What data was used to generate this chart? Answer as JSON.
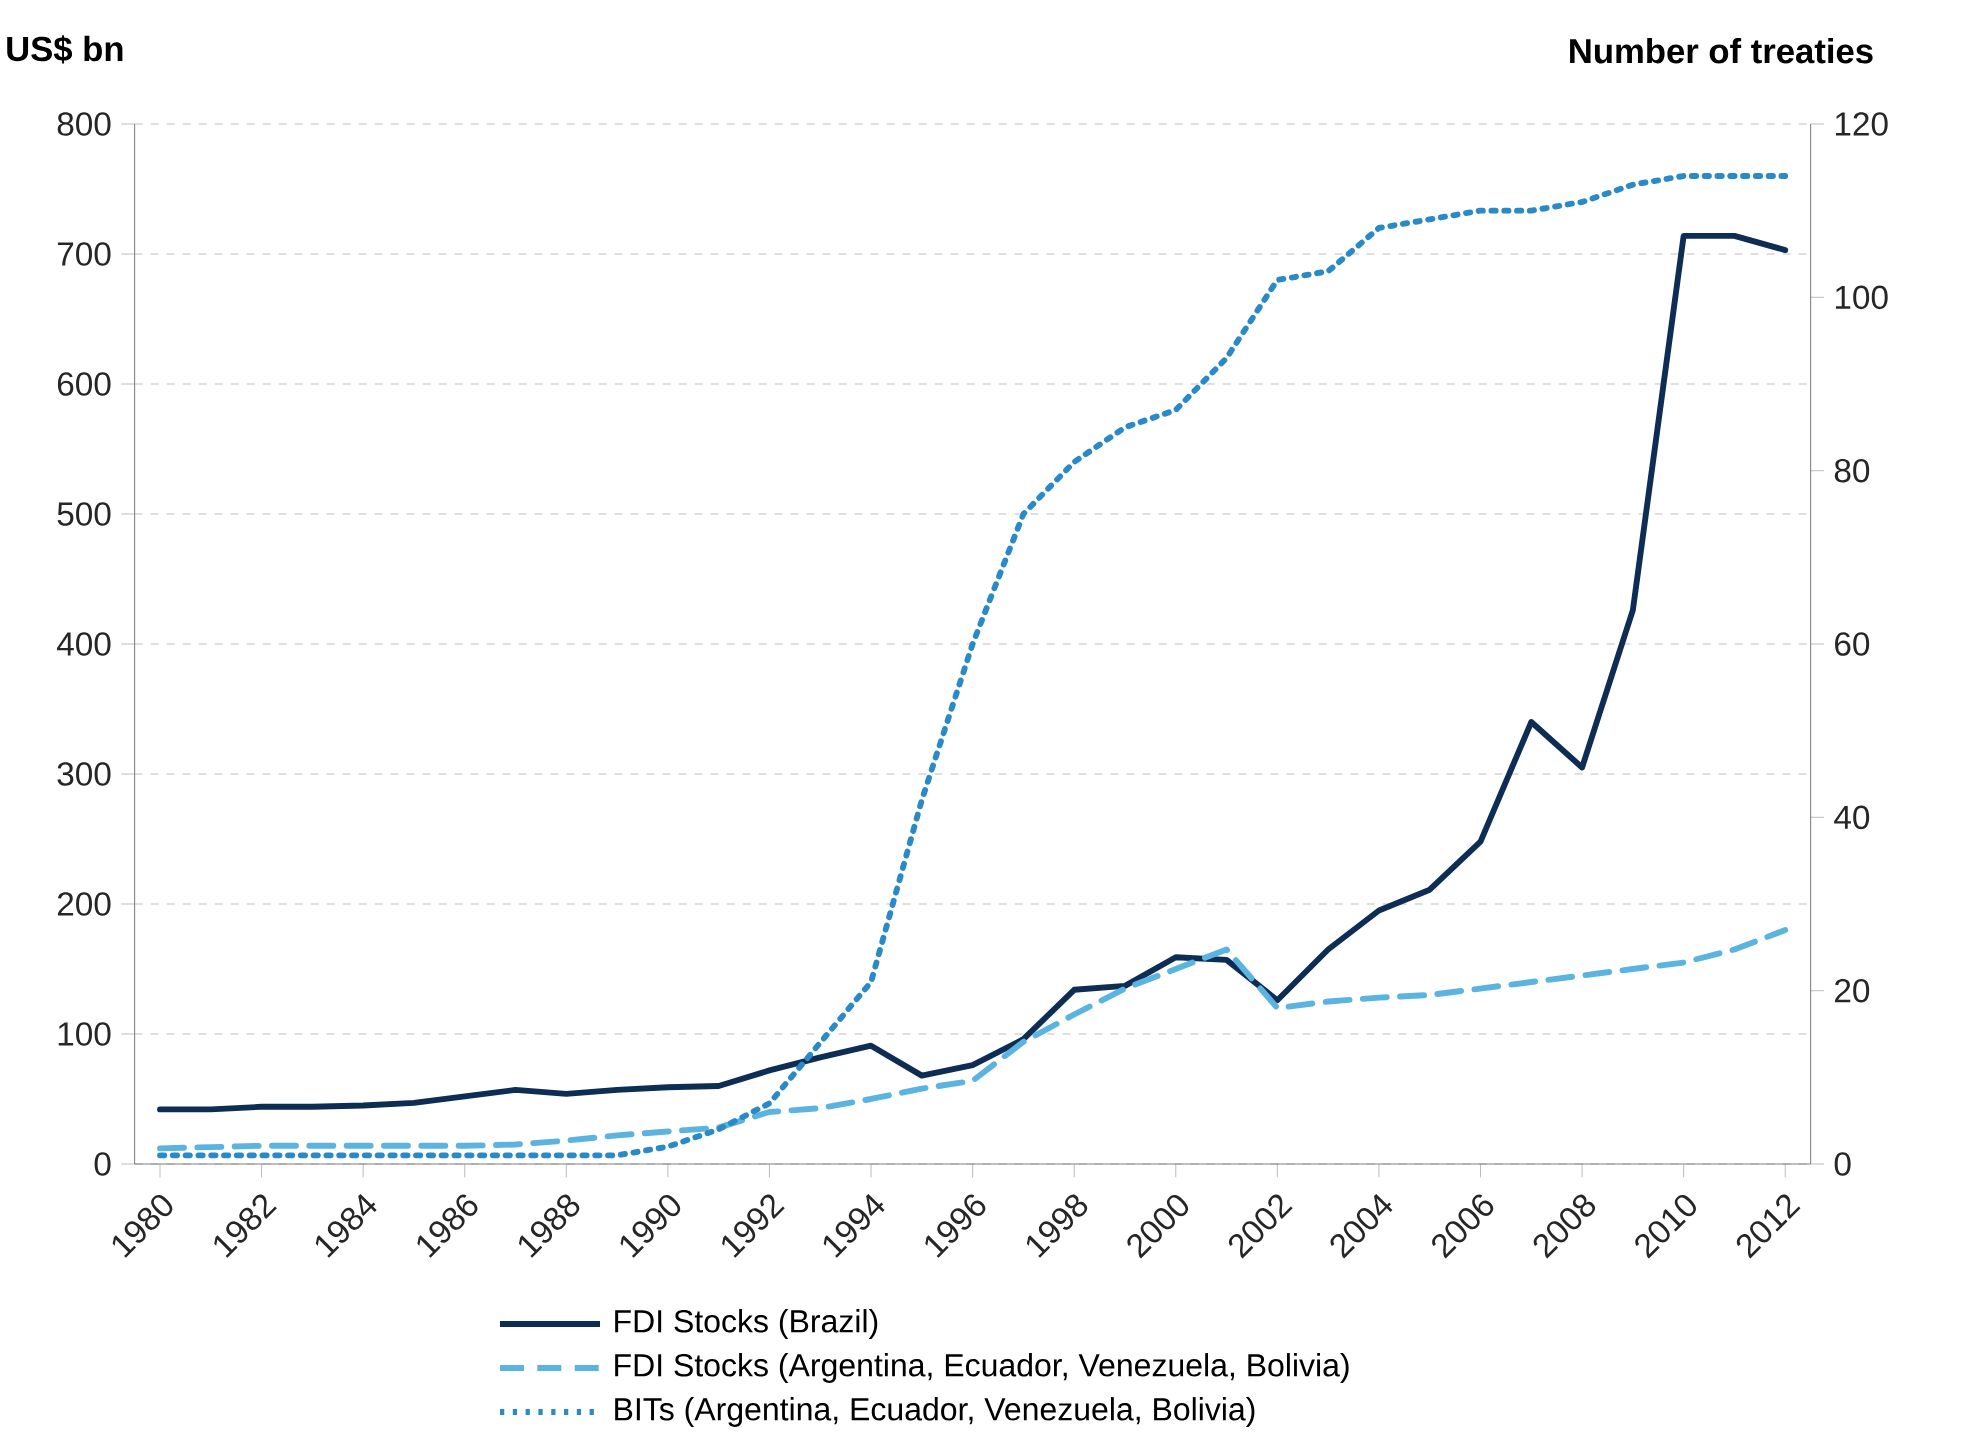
{
  "chart_data": {
    "type": "line",
    "ylabel": "US$ bn",
    "y2label": "Number of treaties",
    "categories": [
      "1980",
      null,
      "1982",
      null,
      "1984",
      null,
      "1986",
      null,
      "1988",
      null,
      "1990",
      null,
      "1992",
      null,
      "1994",
      null,
      "1996",
      null,
      "1998",
      null,
      "2000",
      null,
      "2002",
      null,
      "2004",
      null,
      "2006",
      null,
      "2008",
      null,
      "2010",
      null,
      "2012"
    ],
    "series": [
      {
        "name": "FDI Stocks (Brazil)",
        "color": "#0d2d55",
        "line_style": "solid",
        "values": [
          42,
          42,
          44,
          44,
          45,
          47,
          52,
          57,
          54,
          57,
          59,
          60,
          72,
          82,
          91,
          68,
          76,
          96,
          134,
          137,
          159,
          157,
          126,
          165,
          195,
          211,
          248,
          340,
          305,
          426,
          714,
          714,
          703
        ]
      },
      {
        "name": "FDI Stocks (Argentina, Ecuador, Venezuela, Bolivia)",
        "color": "#5bb4e0",
        "line_style": "dashed",
        "values": [
          12,
          13,
          14,
          14,
          14,
          14,
          14,
          15,
          18,
          22,
          25,
          28,
          40,
          43,
          50,
          58,
          64,
          94,
          115,
          135,
          150,
          165,
          120,
          125,
          128,
          130,
          135,
          140,
          145,
          150,
          155,
          165,
          180
        ]
      },
      {
        "name": "BITs (Argentina, Ecuador, Venezuela, Bolivia)",
        "color": "#2a8ac8",
        "line_style": "dotted",
        "axis": "y2",
        "values": [
          1,
          1,
          1,
          1,
          1,
          1,
          1,
          1,
          1,
          1,
          2,
          4,
          7,
          14,
          21,
          42,
          60,
          75,
          81,
          85,
          87,
          93,
          102,
          103,
          108,
          109,
          110,
          110,
          111,
          113,
          114,
          114,
          114
        ]
      }
    ],
    "ylim": [
      0,
      800
    ],
    "yticks": [
      0,
      100,
      200,
      300,
      400,
      500,
      600,
      700,
      800
    ],
    "y2lim": [
      0,
      120
    ],
    "y2ticks": [
      0,
      20,
      40,
      60,
      80,
      100,
      120
    ],
    "grid": "y",
    "legend": "bottom"
  }
}
